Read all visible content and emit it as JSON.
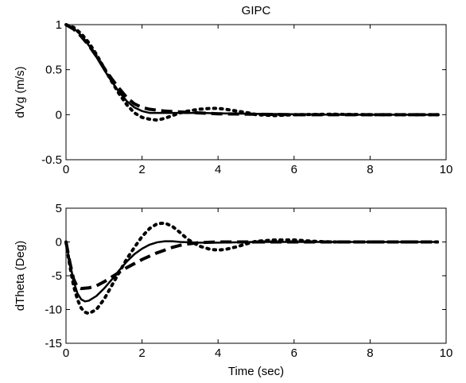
{
  "chart_data": [
    {
      "type": "line",
      "title": "GIPC",
      "xlabel": "",
      "ylabel": "dVg (m/s)",
      "xlim": [
        0,
        10
      ],
      "ylim": [
        -0.5,
        1
      ],
      "xticks": [
        "0",
        "2",
        "4",
        "6",
        "8",
        "10"
      ],
      "yticks": [
        "-0.5",
        "0",
        "0.5",
        "1"
      ],
      "grid": false,
      "series": [
        {
          "style": "solid",
          "x": [
            0,
            0.2,
            0.4,
            0.6,
            0.8,
            1.0,
            1.2,
            1.4,
            1.6,
            1.8,
            2.0,
            2.2,
            2.4,
            2.6,
            2.8,
            3.0,
            3.5,
            4.0,
            5.0,
            6.0,
            7.0,
            8.0,
            9.0,
            9.8
          ],
          "y": [
            1.0,
            0.96,
            0.88,
            0.77,
            0.64,
            0.5,
            0.37,
            0.25,
            0.15,
            0.08,
            0.04,
            0.02,
            0.02,
            0.02,
            0.02,
            0.02,
            0.02,
            0.015,
            0.01,
            0.005,
            0.0,
            0.0,
            0.0,
            0.0
          ]
        },
        {
          "style": "dashed",
          "x": [
            0,
            0.2,
            0.4,
            0.6,
            0.8,
            1.0,
            1.2,
            1.4,
            1.6,
            1.8,
            2.0,
            2.2,
            2.4,
            2.6,
            3.0,
            3.5,
            4.0,
            5.0,
            6.0,
            7.0,
            8.0,
            9.0,
            9.8
          ],
          "y": [
            1.0,
            0.95,
            0.87,
            0.77,
            0.65,
            0.52,
            0.4,
            0.29,
            0.19,
            0.12,
            0.08,
            0.06,
            0.05,
            0.04,
            0.03,
            0.02,
            0.01,
            0.005,
            0.0,
            0.0,
            0.0,
            0.0,
            0.0
          ]
        },
        {
          "style": "dotted",
          "x": [
            0,
            0.2,
            0.4,
            0.6,
            0.8,
            1.0,
            1.2,
            1.4,
            1.6,
            1.8,
            2.0,
            2.2,
            2.4,
            2.6,
            2.8,
            3.0,
            3.2,
            3.5,
            3.8,
            4.0,
            4.2,
            4.5,
            4.8,
            5.0,
            5.5,
            6.0,
            7.0,
            8.0,
            9.0,
            9.8
          ],
          "y": [
            1.0,
            0.97,
            0.9,
            0.8,
            0.67,
            0.52,
            0.37,
            0.23,
            0.11,
            0.02,
            -0.03,
            -0.05,
            -0.06,
            -0.04,
            -0.01,
            0.02,
            0.04,
            0.06,
            0.07,
            0.07,
            0.06,
            0.04,
            0.02,
            0.0,
            -0.01,
            0.0,
            0.005,
            0.0,
            0.0,
            0.0
          ]
        }
      ]
    },
    {
      "type": "line",
      "title": "",
      "xlabel": "Time (sec)",
      "ylabel": "dTheta (Deg)",
      "xlim": [
        0,
        10
      ],
      "ylim": [
        -15,
        5
      ],
      "xticks": [
        "0",
        "2",
        "4",
        "6",
        "8",
        "10"
      ],
      "yticks": [
        "-15",
        "-10",
        "-5",
        "0",
        "5"
      ],
      "grid": false,
      "series": [
        {
          "style": "solid",
          "x": [
            0,
            0.1,
            0.2,
            0.3,
            0.4,
            0.5,
            0.6,
            0.8,
            1.0,
            1.2,
            1.4,
            1.6,
            1.8,
            2.0,
            2.2,
            2.4,
            2.6,
            2.8,
            3.0,
            3.5,
            4.0,
            5.0,
            6.0,
            7.0,
            8.0,
            9.0,
            9.8
          ],
          "y": [
            0,
            -3.0,
            -5.8,
            -7.6,
            -8.5,
            -8.8,
            -8.7,
            -8.0,
            -6.9,
            -5.6,
            -4.2,
            -2.9,
            -1.8,
            -1.0,
            -0.4,
            -0.05,
            0.1,
            0.1,
            0.0,
            -0.1,
            -0.1,
            0.0,
            0.0,
            0.0,
            0.0,
            0.0,
            0.0
          ]
        },
        {
          "style": "dashed",
          "x": [
            0,
            0.1,
            0.2,
            0.3,
            0.4,
            0.6,
            0.8,
            1.0,
            1.2,
            1.4,
            1.6,
            1.8,
            2.0,
            2.2,
            2.4,
            2.6,
            2.8,
            3.0,
            3.2,
            3.5,
            4.0,
            5.0,
            6.0,
            7.0,
            8.0,
            9.0,
            9.8
          ],
          "y": [
            0,
            -3.0,
            -5.5,
            -6.7,
            -6.9,
            -6.8,
            -6.5,
            -5.9,
            -5.2,
            -4.5,
            -3.8,
            -3.2,
            -2.6,
            -2.1,
            -1.6,
            -1.2,
            -0.8,
            -0.5,
            -0.3,
            -0.1,
            0.0,
            0.0,
            0.0,
            0.0,
            0.0,
            0.0,
            0.0
          ]
        },
        {
          "style": "dotted",
          "x": [
            0,
            0.1,
            0.2,
            0.3,
            0.4,
            0.5,
            0.6,
            0.8,
            1.0,
            1.2,
            1.4,
            1.6,
            1.8,
            2.0,
            2.2,
            2.4,
            2.6,
            2.8,
            3.0,
            3.2,
            3.5,
            3.8,
            4.0,
            4.2,
            4.5,
            4.8,
            5.0,
            5.5,
            6.0,
            6.5,
            7.0,
            8.0,
            9.0,
            9.8
          ],
          "y": [
            0,
            -3.5,
            -6.5,
            -8.5,
            -9.8,
            -10.4,
            -10.6,
            -10.0,
            -8.5,
            -6.5,
            -4.5,
            -2.5,
            -0.8,
            0.8,
            2.0,
            2.7,
            2.8,
            2.3,
            1.4,
            0.4,
            -0.6,
            -1.1,
            -1.2,
            -1.1,
            -0.7,
            -0.2,
            0.1,
            0.3,
            0.3,
            0.1,
            0.0,
            0.0,
            0.0,
            0.0
          ]
        }
      ]
    }
  ]
}
